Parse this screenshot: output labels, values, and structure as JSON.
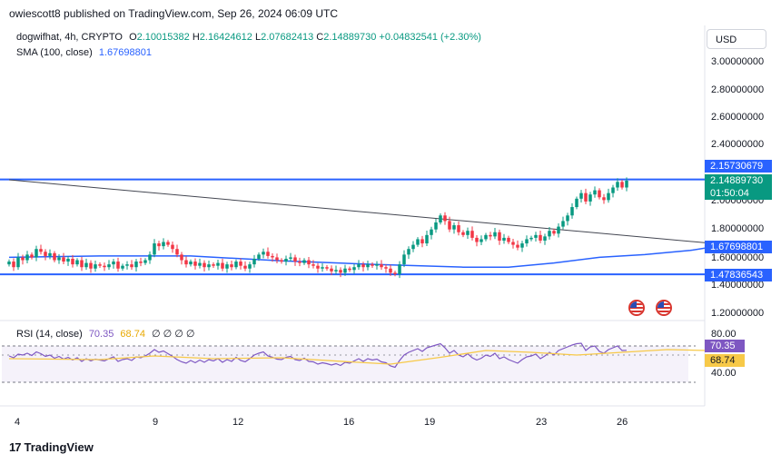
{
  "header": {
    "published": "owiescott8 published on TradingView.com, Sep 26, 2024 06:09 UTC"
  },
  "legend": {
    "symbol": "dogwifhat, 4h, CRYPTO",
    "o_label": "O",
    "o_value": "2.10015382",
    "h_label": "H",
    "h_value": "2.16424612",
    "l_label": "L",
    "l_value": "2.07682413",
    "c_label": "C",
    "c_value": "2.14889730",
    "change": "+0.04832541 (+2.30%)",
    "sma_label": "SMA (100, close)",
    "sma_value": "1.67698801"
  },
  "rsi_legend": {
    "label": "RSI (14, close)",
    "rsi_value": "70.35",
    "ma_value": "68.74",
    "extra": "∅ ∅ ∅ ∅"
  },
  "currency_button": "USD",
  "price_axis": {
    "ticks": [
      "3.00000000",
      "2.80000000",
      "2.60000000",
      "2.40000000",
      "2.00000000",
      "1.80000000",
      "1.60000000",
      "1.40000000",
      "1.20000000"
    ],
    "badges": {
      "resistance": "2.15730679",
      "last_price": "2.14889730",
      "countdown": "01:50:04",
      "sma": "1.67698801",
      "support": "1.47836543"
    }
  },
  "rsi_axis": {
    "ticks": [
      "80.00",
      "40.00"
    ],
    "rsi_badge": "70.35",
    "ma_badge": "68.74"
  },
  "time_axis": [
    "4",
    "9",
    "12",
    "16",
    "19",
    "23",
    "26"
  ],
  "brand": {
    "logo": "17",
    "name": "TradingView"
  },
  "icons": [
    "us-flag-icon",
    "us-flag-icon"
  ],
  "colors": {
    "up": "#089981",
    "down": "#f23645",
    "sma": "#2962ff",
    "level": "#2962ff",
    "rsi": "#7e57c2",
    "rsi_ma": "#f7c948",
    "countdown_badge": "#131722",
    "rsi_ma_badge": "#f7c948"
  },
  "chart_data": {
    "type": "candlestick",
    "symbol": "dogwifhat, 4h, CRYPTO",
    "y_range": [
      1.1,
      3.1
    ],
    "x_labels": [
      "4",
      "9",
      "12",
      "16",
      "19",
      "23",
      "26"
    ],
    "horizontal_levels": [
      2.15730679,
      1.47836543
    ],
    "trendline": [
      [
        0,
        2.155
      ],
      [
        159,
        1.735
      ]
    ],
    "sma_100": [
      [
        0,
        1.6
      ],
      [
        20,
        1.61
      ],
      [
        40,
        1.61
      ],
      [
        60,
        1.575
      ],
      [
        80,
        1.55
      ],
      [
        100,
        1.53
      ],
      [
        110,
        1.53
      ],
      [
        120,
        1.56
      ],
      [
        130,
        1.6
      ],
      [
        140,
        1.62
      ],
      [
        150,
        1.65
      ],
      [
        155,
        1.675
      ]
    ],
    "closes": [
      1.57,
      1.53,
      1.6,
      1.58,
      1.62,
      1.6,
      1.66,
      1.64,
      1.61,
      1.63,
      1.58,
      1.6,
      1.57,
      1.59,
      1.55,
      1.58,
      1.53,
      1.56,
      1.52,
      1.55,
      1.54,
      1.53,
      1.55,
      1.57,
      1.52,
      1.54,
      1.55,
      1.53,
      1.57,
      1.56,
      1.58,
      1.62,
      1.7,
      1.68,
      1.71,
      1.69,
      1.66,
      1.62,
      1.58,
      1.55,
      1.57,
      1.54,
      1.56,
      1.53,
      1.55,
      1.54,
      1.56,
      1.52,
      1.55,
      1.53,
      1.57,
      1.54,
      1.52,
      1.55,
      1.59,
      1.62,
      1.64,
      1.61,
      1.6,
      1.58,
      1.57,
      1.59,
      1.6,
      1.57,
      1.56,
      1.58,
      1.55,
      1.54,
      1.52,
      1.53,
      1.52,
      1.5,
      1.51,
      1.49,
      1.52,
      1.51,
      1.53,
      1.55,
      1.53,
      1.55,
      1.54,
      1.55,
      1.53,
      1.52,
      1.49,
      1.48,
      1.55,
      1.62,
      1.66,
      1.69,
      1.73,
      1.7,
      1.76,
      1.8,
      1.85,
      1.9,
      1.86,
      1.8,
      1.83,
      1.78,
      1.76,
      1.79,
      1.74,
      1.71,
      1.73,
      1.76,
      1.75,
      1.78,
      1.72,
      1.74,
      1.71,
      1.69,
      1.67,
      1.7,
      1.73,
      1.74,
      1.76,
      1.72,
      1.75,
      1.79,
      1.77,
      1.82,
      1.86,
      1.9,
      1.96,
      2.02,
      2.06,
      2.0,
      2.05,
      2.08,
      2.03,
      2.01,
      2.06,
      2.1,
      2.14,
      2.1,
      2.1488973
    ],
    "rsi": [
      58,
      54,
      62,
      60,
      64,
      59,
      67,
      63,
      57,
      60,
      53,
      57,
      51,
      55,
      49,
      54,
      46,
      52,
      47,
      51,
      49,
      47,
      52,
      56,
      46,
      50,
      52,
      48,
      56,
      54,
      58,
      64,
      72,
      66,
      69,
      63,
      57,
      50,
      45,
      42,
      48,
      43,
      49,
      44,
      50,
      47,
      52,
      44,
      50,
      46,
      55,
      48,
      45,
      52,
      60,
      64,
      67,
      58,
      55,
      51,
      50,
      55,
      57,
      50,
      48,
      53,
      46,
      45,
      40,
      43,
      41,
      38,
      41,
      37,
      44,
      42,
      47,
      52,
      46,
      52,
      49,
      51,
      45,
      43,
      36,
      33,
      48,
      60,
      66,
      70,
      74,
      68,
      76,
      79,
      82,
      85,
      76,
      64,
      70,
      60,
      56,
      63,
      54,
      49,
      53,
      60,
      57,
      64,
      52,
      56,
      50,
      46,
      42,
      50,
      56,
      58,
      62,
      52,
      58,
      66,
      60,
      70,
      74,
      78,
      82,
      85,
      86,
      70,
      78,
      80,
      68,
      64,
      72,
      76,
      80,
      70,
      70.35
    ],
    "rsi_ma_points": [
      [
        0,
        52
      ],
      [
        20,
        50
      ],
      [
        32,
        58
      ],
      [
        45,
        52
      ],
      [
        60,
        54
      ],
      [
        75,
        45
      ],
      [
        84,
        40
      ],
      [
        95,
        55
      ],
      [
        105,
        70
      ],
      [
        115,
        66
      ],
      [
        125,
        60
      ],
      [
        135,
        66
      ],
      [
        145,
        72
      ],
      [
        159,
        68.74
      ]
    ],
    "rsi_range": [
      20,
      90
    ],
    "rsi_band": [
      40,
      80
    ]
  }
}
